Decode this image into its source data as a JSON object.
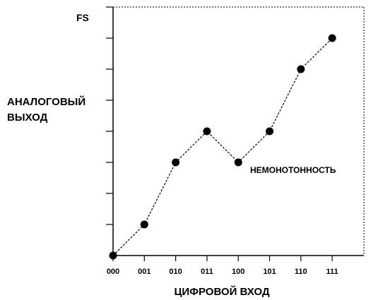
{
  "chart_data": {
    "type": "line",
    "title": "",
    "xlabel": "ЦИФРОВОЙ ВХОД",
    "ylabel": [
      "АНАЛОГОВЫЙ",
      "ВЫХОД"
    ],
    "y_top_label": "FS",
    "categories": [
      "000",
      "001",
      "010",
      "011",
      "100",
      "101",
      "110",
      "111"
    ],
    "values": [
      0,
      1,
      3,
      4,
      3,
      4,
      6,
      7
    ],
    "ylim": [
      0,
      8
    ],
    "y_ticks": 8,
    "grid": false,
    "line_style": "dashed",
    "annotation": {
      "text": "НЕМОНОТОННОСТЬ",
      "category": "100"
    }
  }
}
